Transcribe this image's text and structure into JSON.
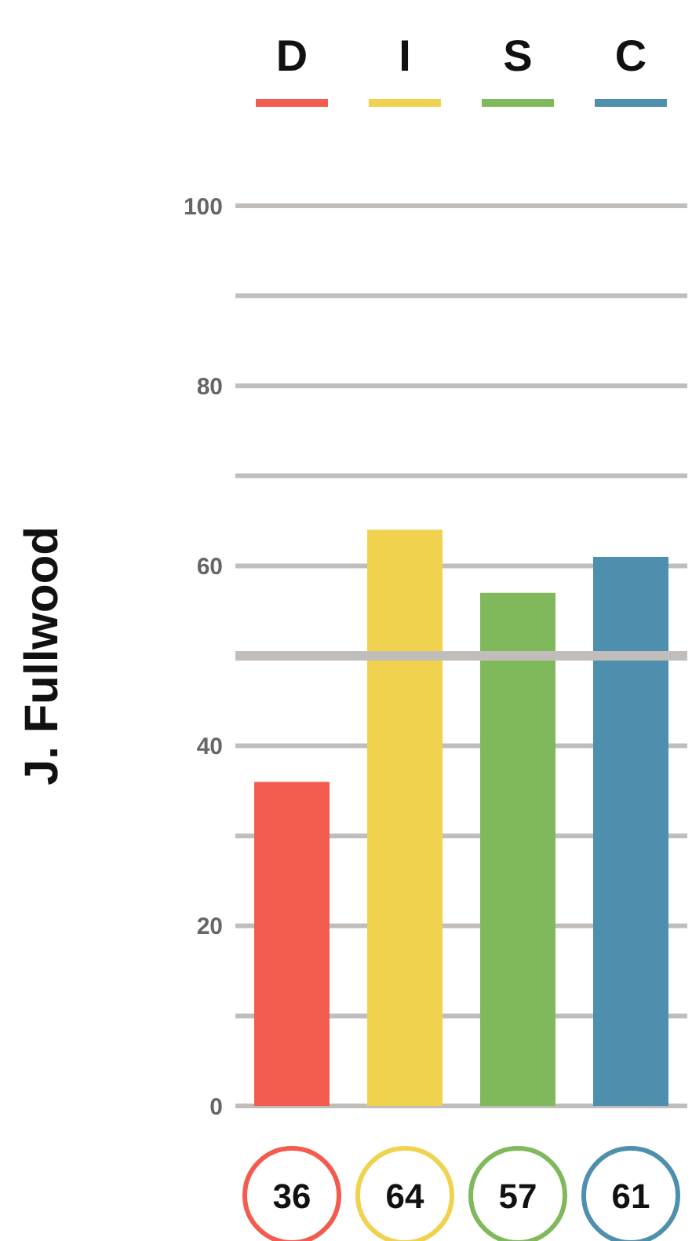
{
  "chart_data": {
    "type": "bar",
    "ylabel": "J. Fullwood",
    "categories": [
      "D",
      "I",
      "S",
      "C"
    ],
    "values": [
      36,
      64,
      57,
      61
    ],
    "colors": [
      "#f25c4f",
      "#f0d24f",
      "#80b95b",
      "#4f8fae"
    ],
    "ylim": [
      0,
      100
    ],
    "yticks": [
      0,
      {
        "value": 10,
        "label": null
      },
      20,
      {
        "value": 30,
        "label": null
      },
      40,
      {
        "value": 50,
        "label": null
      },
      60,
      {
        "value": 70,
        "label": null
      },
      80,
      {
        "value": 90,
        "label": null
      },
      100
    ],
    "grid": "y",
    "ref_lines": [
      {
        "axis": "y",
        "value": 50,
        "color": "#c0bdbb"
      }
    ],
    "data_labels": true
  }
}
